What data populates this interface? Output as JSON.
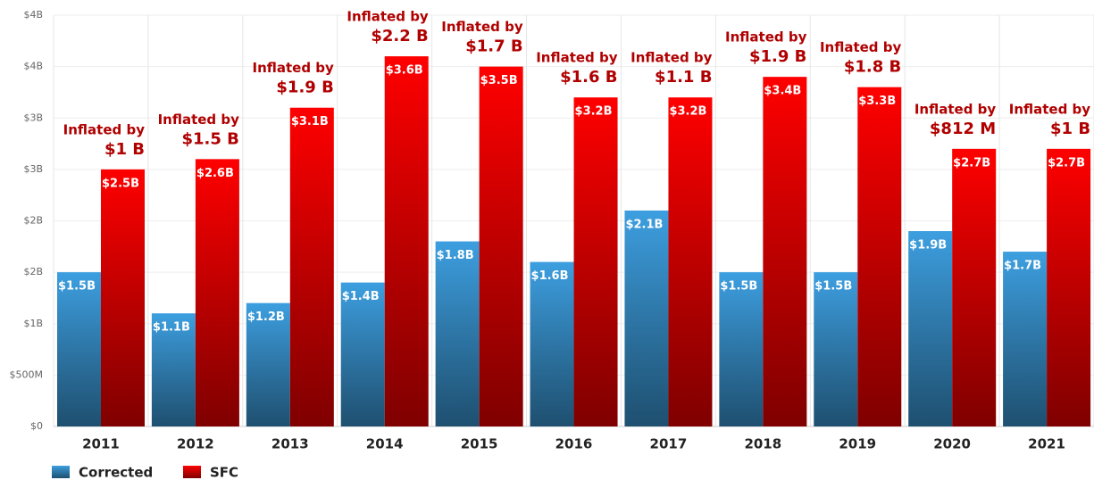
{
  "chart_data": {
    "type": "bar",
    "categories": [
      "2011",
      "2012",
      "2013",
      "2014",
      "2015",
      "2016",
      "2017",
      "2018",
      "2019",
      "2020",
      "2021"
    ],
    "series": [
      {
        "name": "Corrected",
        "color": "#3d9fe0",
        "values": [
          1.5,
          1.1,
          1.2,
          1.4,
          1.8,
          1.6,
          2.1,
          1.5,
          1.5,
          1.9,
          1.7
        ],
        "value_labels": [
          "$1.5B",
          "$1.1B",
          "$1.2B",
          "$1.4B",
          "$1.8B",
          "$1.6B",
          "$2.1B",
          "$1.5B",
          "$1.5B",
          "$1.9B",
          "$1.7B"
        ]
      },
      {
        "name": "SFC",
        "color": "#ff0000",
        "values": [
          2.5,
          2.6,
          3.1,
          3.6,
          3.5,
          3.2,
          3.2,
          3.4,
          3.3,
          2.7,
          2.7
        ],
        "value_labels": [
          "$2.5B",
          "$2.6B",
          "$3.1B",
          "$3.6B",
          "$3.5B",
          "$3.2B",
          "$3.2B",
          "$3.4B",
          "$3.3B",
          "$2.7B",
          "$2.7B"
        ]
      }
    ],
    "annotations": [
      {
        "text": "Inflated by",
        "amount": "$1 B"
      },
      {
        "text": "Inflated by",
        "amount": "$1.5 B"
      },
      {
        "text": "Inflated by",
        "amount": "$1.9 B"
      },
      {
        "text": "Inflated by",
        "amount": "$2.2 B"
      },
      {
        "text": "Inflated by",
        "amount": "$1.7 B"
      },
      {
        "text": "Inflated by",
        "amount": "$1.6 B"
      },
      {
        "text": "Inflated by",
        "amount": "$1.1 B"
      },
      {
        "text": "Inflated by",
        "amount": "$1.9 B"
      },
      {
        "text": "Inflated by",
        "amount": "$1.8 B"
      },
      {
        "text": "Inflated by",
        "amount": "$812 M"
      },
      {
        "text": "Inflated by",
        "amount": "$1 B"
      }
    ],
    "ylim": [
      0,
      4
    ],
    "yticks": [
      {
        "value": 0,
        "label": "$0"
      },
      {
        "value": 0.5,
        "label": "$500M"
      },
      {
        "value": 1,
        "label": "$1B"
      },
      {
        "value": 1.5,
        "label": "$2B"
      },
      {
        "value": 2,
        "label": "$2B"
      },
      {
        "value": 2.5,
        "label": "$3B"
      },
      {
        "value": 3,
        "label": "$3B"
      },
      {
        "value": 3.5,
        "label": "$4B"
      },
      {
        "value": 4,
        "label": "$4B"
      }
    ],
    "grid": true
  }
}
